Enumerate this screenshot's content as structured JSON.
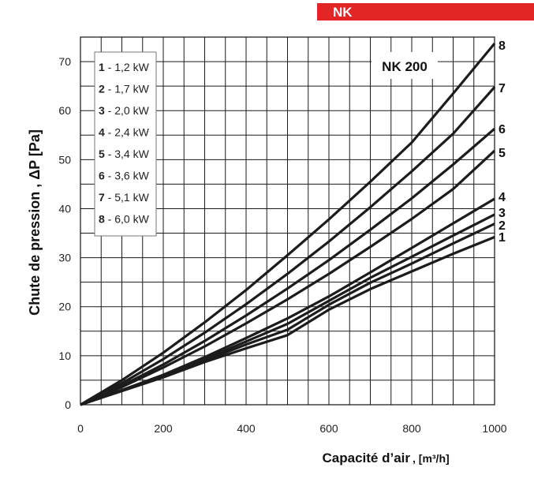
{
  "header": {
    "label": "NK"
  },
  "chart_data": {
    "type": "line",
    "title": "NK 200",
    "xlabel": "Capacité d’air",
    "xunit": ", [m³/h]",
    "ylabel": "Chute de pression , ΔP [Pa]",
    "xlim": [
      0,
      1000
    ],
    "ylim": [
      0,
      75
    ],
    "x_ticks": [
      0,
      200,
      400,
      600,
      800,
      1000
    ],
    "y_ticks": [
      0,
      10,
      20,
      30,
      40,
      50,
      60,
      70
    ],
    "grid": true,
    "legend_position": "top-left",
    "series": [
      {
        "label": "1",
        "legend_num": "1",
        "legend_text": " - 1,2 kW",
        "x": [
          0,
          100,
          200,
          300,
          400,
          500,
          600,
          700,
          800,
          900,
          1000
        ],
        "values": [
          0,
          2.8,
          5.6,
          8.7,
          11.5,
          14.2,
          19.4,
          23.6,
          27.2,
          30.8,
          34.2
        ]
      },
      {
        "label": "2",
        "legend_num": "2",
        "legend_text": " - 1,7 kW",
        "x": [
          0,
          100,
          200,
          300,
          400,
          500,
          600,
          700,
          800,
          900,
          1000
        ],
        "values": [
          0,
          2.9,
          5.8,
          9.0,
          12.3,
          15.3,
          20.4,
          24.9,
          28.8,
          32.9,
          36.9
        ]
      },
      {
        "label": "3",
        "legend_num": "3",
        "legend_text": " - 2,0 kW",
        "x": [
          0,
          100,
          200,
          300,
          400,
          500,
          600,
          700,
          800,
          900,
          1000
        ],
        "values": [
          0,
          2.9,
          5.9,
          9.3,
          12.9,
          16.5,
          21.2,
          25.9,
          30.2,
          34.5,
          38.8
        ]
      },
      {
        "label": "4",
        "legend_num": "4",
        "legend_text": " - 2,4 kW",
        "x": [
          0,
          100,
          200,
          300,
          400,
          500,
          600,
          700,
          800,
          900,
          1000
        ],
        "values": [
          0,
          3.0,
          6.1,
          9.7,
          13.6,
          17.6,
          22.1,
          27.0,
          32.0,
          37.0,
          42.0
        ]
      },
      {
        "label": "5",
        "legend_num": "5",
        "legend_text": " - 3,4 kW",
        "x": [
          0,
          100,
          200,
          300,
          400,
          500,
          600,
          700,
          800,
          900,
          1000
        ],
        "values": [
          0,
          3.6,
          7.6,
          11.9,
          16.6,
          21.5,
          26.7,
          32.2,
          37.9,
          44.0,
          51.8
        ]
      },
      {
        "label": "6",
        "legend_num": "6",
        "legend_text": " - 3,6 kW",
        "x": [
          0,
          100,
          200,
          300,
          400,
          500,
          600,
          700,
          800,
          900,
          1000
        ],
        "values": [
          0,
          3.9,
          8.2,
          13.0,
          18.2,
          23.7,
          29.5,
          35.7,
          42.1,
          49.0,
          56.3
        ]
      },
      {
        "label": "7",
        "legend_num": "7",
        "legend_text": " - 5,1 kW",
        "x": [
          0,
          100,
          200,
          300,
          400,
          500,
          600,
          700,
          800,
          900,
          1000
        ],
        "values": [
          0,
          4.4,
          9.3,
          14.7,
          20.5,
          26.7,
          33.3,
          40.3,
          47.6,
          55.3,
          64.8
        ]
      },
      {
        "label": "8",
        "legend_num": "8",
        "legend_text": " - 6,0 kW",
        "x": [
          0,
          100,
          200,
          300,
          400,
          500,
          600,
          700,
          800,
          900,
          1000
        ],
        "values": [
          0,
          5.0,
          10.6,
          16.8,
          23.4,
          30.5,
          37.8,
          45.5,
          53.5,
          63.5,
          73.7
        ]
      }
    ]
  }
}
